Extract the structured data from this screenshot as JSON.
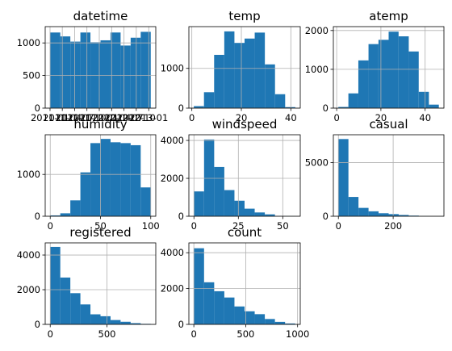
{
  "bar_color": "#1f77b4",
  "grid_color": "#b0b0b0",
  "chart_data": [
    {
      "type": "bar",
      "title": "datetime",
      "bins": 10,
      "xlim": [
        0,
        11
      ],
      "ylim": [
        0,
        1250
      ],
      "x_ticks": [
        {
          "label": "2011-01",
          "value": 0.48
        },
        {
          "label": "2011-04",
          "value": 1.7
        },
        {
          "label": "2011-07",
          "value": 2.93
        },
        {
          "label": "2011-10",
          "value": 4.15
        },
        {
          "label": "2012-01",
          "value": 5.38
        },
        {
          "label": "2012-04",
          "value": 6.61
        },
        {
          "label": "2012-07",
          "value": 7.84
        },
        {
          "label": "2012-10",
          "value": 9.06
        },
        {
          "label": "2013-01",
          "value": 10.3
        }
      ],
      "y_ticks": [
        0,
        500,
        1000
      ],
      "values": [
        1160,
        1100,
        1020,
        1160,
        1010,
        1040,
        1160,
        960,
        1080,
        1170
      ]
    },
    {
      "type": "bar",
      "title": "temp",
      "bin_edges": [
        0.8,
        4.9,
        9.0,
        13.1,
        17.2,
        21.3,
        25.4,
        29.5,
        33.6,
        37.7,
        41.8
      ],
      "xlim": [
        -1.2,
        43.8
      ],
      "ylim": [
        0,
        2050
      ],
      "x_ticks": [
        0,
        20,
        40
      ],
      "y_ticks": [
        0,
        1000
      ],
      "values": [
        50,
        400,
        1340,
        1930,
        1640,
        1750,
        1900,
        1100,
        350,
        25
      ]
    },
    {
      "type": "bar",
      "title": "atemp",
      "bin_edges": [
        0.76,
        5.3,
        9.8,
        14.4,
        18.9,
        23.5,
        28.0,
        32.6,
        37.1,
        41.7,
        46.2
      ],
      "xlim": [
        -1.5,
        48.5
      ],
      "ylim": [
        0,
        2100
      ],
      "x_ticks": [
        0,
        20,
        40
      ],
      "y_ticks": [
        0,
        1000,
        2000
      ],
      "values": [
        30,
        380,
        1230,
        1650,
        1760,
        1970,
        1850,
        1460,
        420,
        90
      ]
    },
    {
      "type": "bar",
      "title": "humidity",
      "bin_edges": [
        0,
        10,
        20,
        30,
        40,
        50,
        60,
        70,
        80,
        90,
        100
      ],
      "xlim": [
        -5,
        105
      ],
      "ylim": [
        0,
        1950
      ],
      "x_ticks": [
        0,
        50,
        100
      ],
      "y_ticks": [
        0,
        1000
      ],
      "values": [
        20,
        70,
        380,
        1050,
        1750,
        1850,
        1770,
        1750,
        1700,
        690
      ]
    },
    {
      "type": "bar",
      "title": "windspeed",
      "bin_edges": [
        0,
        5.7,
        11.4,
        17.1,
        22.8,
        28.5,
        34.2,
        39.9,
        45.6,
        51.3,
        57.0
      ],
      "xlim": [
        -2.85,
        59.85
      ],
      "ylim": [
        0,
        4300
      ],
      "x_ticks": [
        0,
        25,
        50
      ],
      "y_ticks": [
        0,
        2000,
        4000
      ],
      "values": [
        1310,
        4050,
        2600,
        1380,
        820,
        400,
        200,
        100,
        20,
        10
      ]
    },
    {
      "type": "bar",
      "title": "casual",
      "bin_edges": [
        0,
        36.7,
        73.4,
        110.1,
        146.8,
        183.5,
        220.2,
        256.9,
        293.6,
        330.3,
        367
      ],
      "xlim": [
        -18.35,
        385.35
      ],
      "ylim": [
        0,
        7600
      ],
      "x_ticks": [
        0,
        200
      ],
      "y_ticks": [
        0,
        5000
      ],
      "values": [
        7200,
        1800,
        780,
        460,
        280,
        200,
        120,
        60,
        20,
        10
      ]
    },
    {
      "type": "bar",
      "title": "registered",
      "bin_edges": [
        0,
        88.6,
        177.2,
        265.8,
        354.4,
        443,
        531.6,
        620.2,
        708.8,
        797.4,
        886
      ],
      "xlim": [
        -44.3,
        930.3
      ],
      "ylim": [
        0,
        4700
      ],
      "x_ticks": [
        0,
        500
      ],
      "y_ticks": [
        0,
        2000,
        4000
      ],
      "values": [
        4470,
        2700,
        1800,
        1150,
        580,
        470,
        250,
        150,
        70,
        30
      ]
    },
    {
      "type": "bar",
      "title": "count",
      "bin_edges": [
        1,
        98.6,
        196.2,
        293.8,
        391.4,
        489,
        586.6,
        684.2,
        781.8,
        879.4,
        977
      ],
      "xlim": [
        -47.8,
        1025.8
      ],
      "ylim": [
        0,
        4550
      ],
      "x_ticks": [
        0,
        500,
        1000
      ],
      "y_ticks": [
        0,
        2000,
        4000
      ],
      "values": [
        4250,
        2350,
        1850,
        1500,
        1000,
        730,
        570,
        300,
        140,
        50
      ]
    }
  ]
}
